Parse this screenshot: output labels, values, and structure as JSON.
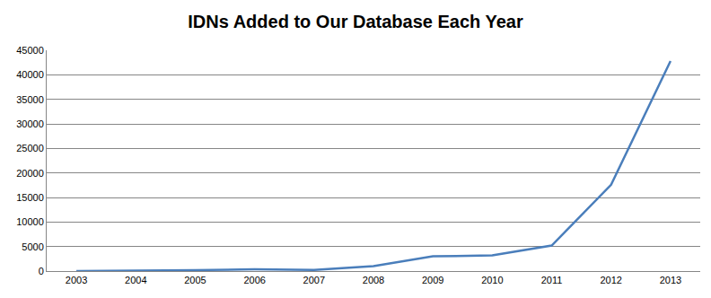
{
  "chart_data": {
    "type": "line",
    "title": "IDNs Added to Our Database Each Year",
    "categories": [
      "2003",
      "2004",
      "2005",
      "2006",
      "2007",
      "2008",
      "2009",
      "2010",
      "2011",
      "2012",
      "2013"
    ],
    "values": [
      0,
      50,
      200,
      350,
      250,
      1000,
      3000,
      3200,
      5200,
      17600,
      42800
    ],
    "color": "#4a7ebb",
    "ylim": [
      0,
      45000
    ],
    "yticks": [
      0,
      5000,
      10000,
      15000,
      20000,
      25000,
      30000,
      35000,
      40000,
      45000
    ],
    "grid": true
  }
}
